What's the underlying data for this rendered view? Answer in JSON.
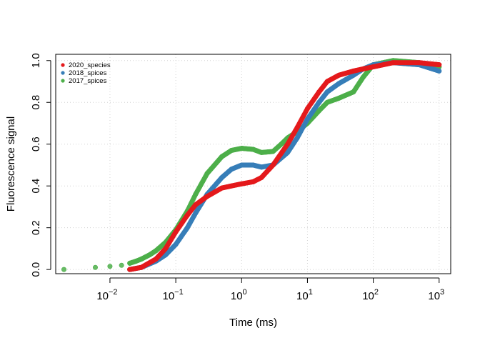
{
  "chart_data": {
    "type": "scatter",
    "title": "",
    "xlabel": "Time (ms)",
    "ylabel": "Fluorescence signal",
    "xscale": "log10",
    "xlim": [
      0.0015,
      1500
    ],
    "ylim": [
      -0.02,
      1.03
    ],
    "grid": true,
    "legend_position": "top-left",
    "x_ticks": [
      {
        "value": 0.01,
        "base": "10",
        "exp": "−2"
      },
      {
        "value": 0.1,
        "base": "10",
        "exp": "−1"
      },
      {
        "value": 1,
        "base": "10",
        "exp": "0"
      },
      {
        "value": 10,
        "base": "10",
        "exp": "1"
      },
      {
        "value": 100,
        "base": "10",
        "exp": "2"
      },
      {
        "value": 1000,
        "base": "10",
        "exp": "3"
      }
    ],
    "y_ticks": [
      {
        "value": 0.0,
        "label": "0.0"
      },
      {
        "value": 0.2,
        "label": "0.2"
      },
      {
        "value": 0.4,
        "label": "0.4"
      },
      {
        "value": 0.6,
        "label": "0.6"
      },
      {
        "value": 0.8,
        "label": "0.8"
      },
      {
        "value": 1.0,
        "label": "1.0"
      }
    ],
    "series": [
      {
        "name": "2017_spices",
        "color": "#4daf4a",
        "x": [
          0.002,
          0.006,
          0.01,
          0.015,
          0.02,
          0.025,
          0.03,
          0.04,
          0.05,
          0.07,
          0.1,
          0.15,
          0.2,
          0.3,
          0.5,
          0.7,
          1,
          1.5,
          2,
          3,
          4,
          5,
          7,
          10,
          15,
          20,
          30,
          50,
          70,
          100,
          200,
          500,
          1000
        ],
        "y": [
          0.0,
          0.01,
          0.015,
          0.02,
          0.03,
          0.04,
          0.05,
          0.07,
          0.09,
          0.13,
          0.19,
          0.28,
          0.36,
          0.46,
          0.54,
          0.57,
          0.58,
          0.575,
          0.56,
          0.565,
          0.6,
          0.63,
          0.66,
          0.7,
          0.76,
          0.8,
          0.82,
          0.85,
          0.92,
          0.98,
          1.0,
          0.99,
          0.97
        ]
      },
      {
        "name": "2018_spices",
        "color": "#377eb8",
        "x": [
          0.02,
          0.03,
          0.05,
          0.07,
          0.1,
          0.15,
          0.2,
          0.3,
          0.5,
          0.7,
          1,
          1.5,
          2,
          3,
          5,
          7,
          10,
          15,
          20,
          30,
          50,
          70,
          100,
          200,
          500,
          1000
        ],
        "y": [
          0.0,
          0.01,
          0.04,
          0.07,
          0.12,
          0.2,
          0.27,
          0.36,
          0.44,
          0.48,
          0.5,
          0.5,
          0.49,
          0.5,
          0.56,
          0.63,
          0.72,
          0.8,
          0.85,
          0.89,
          0.93,
          0.96,
          0.98,
          0.99,
          0.98,
          0.95
        ]
      },
      {
        "name": "2020_species",
        "color": "#e41a1c",
        "x": [
          0.02,
          0.03,
          0.05,
          0.07,
          0.1,
          0.15,
          0.2,
          0.3,
          0.5,
          0.7,
          1,
          1.5,
          2,
          3,
          5,
          7,
          10,
          15,
          20,
          30,
          50,
          70,
          100,
          200,
          500,
          1000
        ],
        "y": [
          0.0,
          0.01,
          0.05,
          0.1,
          0.18,
          0.26,
          0.31,
          0.35,
          0.39,
          0.4,
          0.41,
          0.42,
          0.44,
          0.5,
          0.6,
          0.68,
          0.77,
          0.85,
          0.9,
          0.93,
          0.95,
          0.96,
          0.97,
          0.99,
          0.99,
          0.98
        ]
      }
    ],
    "legend": [
      {
        "label": "2020_species",
        "color": "#e41a1c"
      },
      {
        "label": "2018_spices",
        "color": "#377eb8"
      },
      {
        "label": "2017_spices",
        "color": "#4daf4a"
      }
    ]
  }
}
